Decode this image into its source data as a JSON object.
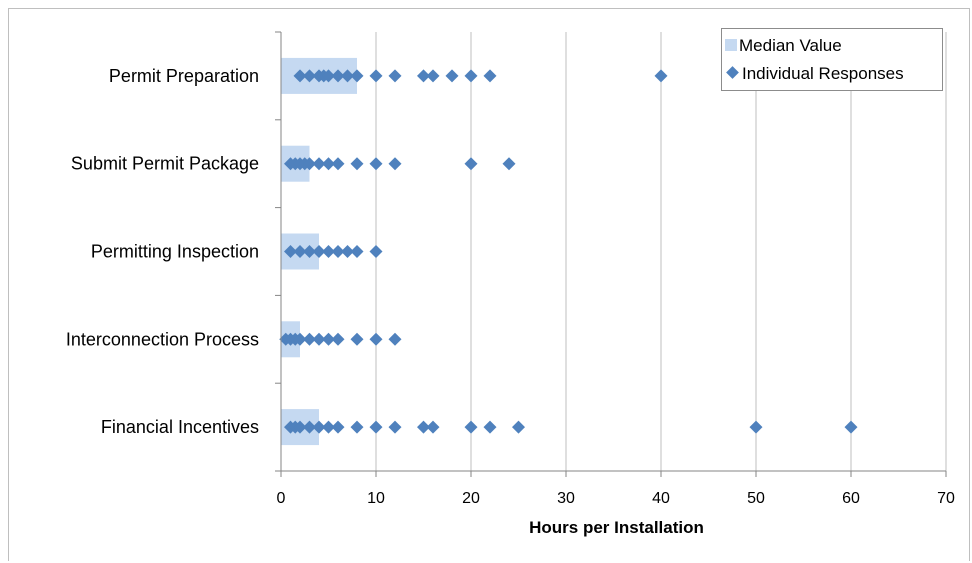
{
  "chart_data": {
    "type": "scatter",
    "orientation": "horizontal",
    "categories": [
      "Permit Preparation",
      "Submit Permit Package",
      "Permitting Inspection",
      "Interconnection Process",
      "Financial Incentives"
    ],
    "xlabel": "Hours per Installation",
    "ylabel": "",
    "xlim": [
      0,
      70
    ],
    "xticks": [
      0,
      10,
      20,
      30,
      40,
      50,
      60,
      70
    ],
    "grid": "vertical",
    "legend_position": "top-right",
    "series": [
      {
        "name": "Median Value",
        "kind": "bar",
        "color": "#c5d9f1",
        "values": [
          8,
          3,
          4,
          2,
          4
        ]
      },
      {
        "name": "Individual Responses",
        "kind": "scatter",
        "marker": "diamond",
        "color": "#4f81bd",
        "points": [
          [
            2,
            3,
            4,
            4.5,
            5,
            6,
            7,
            8,
            10,
            12,
            15,
            16,
            18,
            20,
            22,
            40
          ],
          [
            1,
            1.5,
            2,
            2.5,
            3,
            4,
            5,
            6,
            8,
            10,
            12,
            20,
            24
          ],
          [
            1,
            2,
            3,
            4,
            5,
            6,
            7,
            8,
            10
          ],
          [
            0.5,
            1,
            1.5,
            2,
            3,
            4,
            5,
            6,
            8,
            10,
            12
          ],
          [
            1,
            1.5,
            2,
            3,
            4,
            5,
            6,
            8,
            10,
            12,
            15,
            16,
            20,
            22,
            25,
            50,
            60
          ]
        ]
      }
    ]
  }
}
